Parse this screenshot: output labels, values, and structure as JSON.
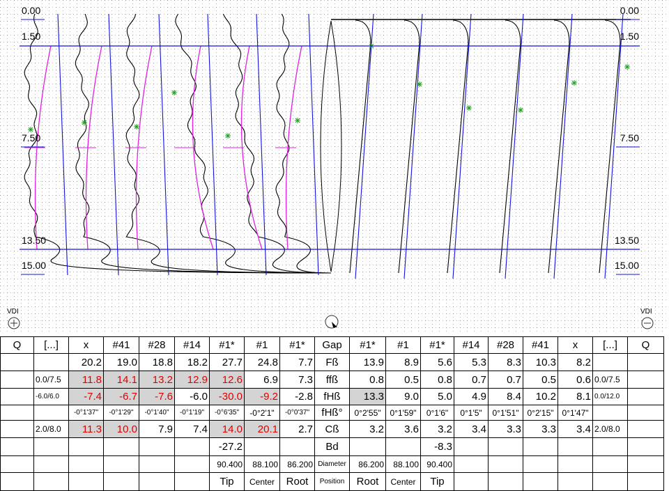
{
  "profile_levels": [
    "0.00",
    "1.50",
    "7.50",
    "13.50",
    "15.00"
  ],
  "vdi_left": "VDI",
  "vdi_right": "VDI",
  "table": {
    "rows": [
      [
        "Q",
        "[...]",
        "x",
        "#41",
        "#28",
        "#14",
        "#1*",
        "#1",
        "#1*",
        "Gap",
        "#1*",
        "#1",
        "#1*",
        "#14",
        "#28",
        "#41",
        "x",
        "[...]",
        "Q"
      ],
      [
        null,
        null,
        "20.2",
        "19.0",
        "18.8",
        "18.2",
        "27.7",
        "24.8",
        "7.7",
        "Fß",
        "13.9",
        "8.9",
        "5.6",
        "5.3",
        "8.3",
        "10.3",
        "8.2",
        null,
        null
      ],
      [
        null,
        "0.0/7.5",
        {
          "text": "11.8",
          "color": "red",
          "shade": true
        },
        {
          "text": "14.1",
          "color": "red",
          "shade": true
        },
        {
          "text": "13.2",
          "color": "red",
          "shade": true
        },
        {
          "text": "12.9",
          "color": "red",
          "shade": true
        },
        {
          "text": "12.6",
          "color": "red",
          "shade": true
        },
        "6.9",
        "7.3",
        "ffß",
        "0.8",
        "0.5",
        "0.8",
        "0.7",
        "0.7",
        "0.5",
        "0.6",
        "0.0/7.5",
        null
      ],
      [
        null,
        "-6.0/6.0",
        {
          "text": "-7.4",
          "color": "red",
          "shade": true
        },
        {
          "text": "-6.7",
          "color": "red",
          "shade": true
        },
        {
          "text": "-7.6",
          "color": "red",
          "shade": true
        },
        "-6.0",
        {
          "text": "-30.0",
          "color": "red",
          "shade": true
        },
        {
          "text": "-9.2",
          "color": "red",
          "shade": true
        },
        "-2.8",
        "fHß",
        {
          "text": "13.3",
          "shade": true
        },
        "9.0",
        "5.0",
        "4.9",
        "8.4",
        "10.2",
        "8.1",
        "0.0/12.0",
        null
      ],
      [
        null,
        null,
        "-0°1'37\"",
        "-0°1'29\"",
        "-0°1'40\"",
        "-0°1'19\"",
        "-0°6'35\"",
        "-0°2'1\"",
        "-0°0'37\"",
        "fHß°",
        "0°2'55\"",
        "0°1'59\"",
        "0°1'6\"",
        "0°1'5\"",
        "0°1'51\"",
        "0°2'15\"",
        "0°1'47\"",
        null,
        null
      ],
      [
        null,
        "2.0/8.0",
        {
          "text": "11.3",
          "color": "red",
          "shade": true
        },
        {
          "text": "10.0",
          "color": "red",
          "shade": true
        },
        "7.9",
        "7.4",
        {
          "text": "14.0",
          "color": "red",
          "shade": true
        },
        {
          "text": "20.1",
          "color": "red",
          "shade": true
        },
        "2.7",
        "Cß",
        "3.2",
        "3.6",
        "3.2",
        "3.4",
        "3.3",
        "3.3",
        "3.4",
        "2.0/8.0",
        null
      ],
      [
        null,
        null,
        null,
        null,
        null,
        null,
        "-27.2",
        null,
        null,
        "Bd",
        null,
        null,
        "-8.3",
        null,
        null,
        null,
        null,
        null,
        null
      ],
      [
        null,
        null,
        null,
        null,
        null,
        null,
        "90.400",
        "88.100",
        "86.200",
        "Diameter",
        "86.200",
        "88.100",
        "90.400",
        null,
        null,
        null,
        null,
        null,
        null
      ],
      [
        null,
        null,
        null,
        null,
        null,
        null,
        "Tip",
        "Center",
        "Root",
        "Position",
        "Root",
        "Center",
        "Tip",
        null,
        null,
        null,
        null,
        null,
        null
      ]
    ]
  }
}
